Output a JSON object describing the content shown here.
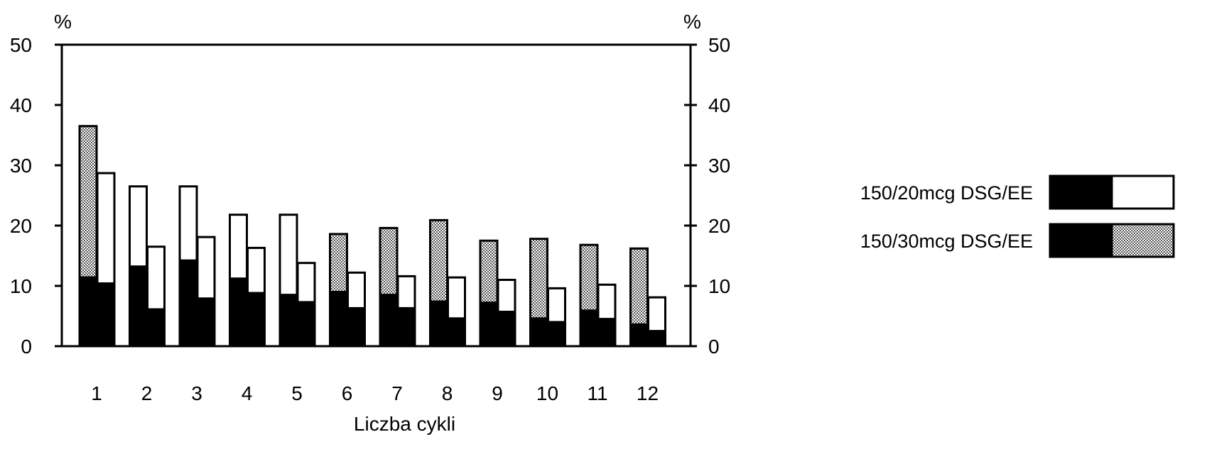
{
  "chart_data": {
    "type": "bar",
    "xlabel": "Liczba cykli",
    "left_axis_unit": "%",
    "right_axis_unit": "%",
    "ylim": [
      0,
      50
    ],
    "yticks": [
      0,
      10,
      20,
      30,
      40,
      50
    ],
    "categories": [
      "1",
      "2",
      "3",
      "4",
      "5",
      "6",
      "7",
      "8",
      "9",
      "10",
      "11",
      "12"
    ],
    "series": [
      {
        "name": "150/30mcg DSG/EE",
        "position": "first",
        "total": [
          36.5,
          26.5,
          26.5,
          21.8,
          21.8,
          18.6,
          19.6,
          20.9,
          17.5,
          17.8,
          16.8,
          16.2
        ],
        "dark_part": [
          11.4,
          13.2,
          14.2,
          11.2,
          8.5,
          9.0,
          8.5,
          7.4,
          7.2,
          4.6,
          5.9,
          3.6
        ],
        "upper_fill": [
          "dotted",
          "white",
          "white",
          "white",
          "white",
          "dotted",
          "dotted",
          "dotted",
          "dotted",
          "dotted",
          "dotted",
          "dotted"
        ]
      },
      {
        "name": "150/20mcg DSG/EE",
        "position": "second",
        "total": [
          28.7,
          16.5,
          18.1,
          16.3,
          13.8,
          12.2,
          11.6,
          11.4,
          11.0,
          9.6,
          10.2,
          8.1
        ],
        "dark_part": [
          10.4,
          6.1,
          7.9,
          8.8,
          7.3,
          6.3,
          6.3,
          4.6,
          5.7,
          4.0,
          4.5,
          2.5
        ],
        "upper_fill": [
          "white",
          "white",
          "white",
          "white",
          "white",
          "white",
          "white",
          "white",
          "white",
          "white",
          "white",
          "white"
        ]
      }
    ],
    "legend": {
      "placement": "right",
      "entries": [
        {
          "label": "150/20mcg DSG/EE",
          "left_fill": "black",
          "right_fill": "white"
        },
        {
          "label": "150/30mcg DSG/EE",
          "left_fill": "black",
          "right_fill": "dotted"
        }
      ]
    },
    "colors": {
      "dark": "#000000",
      "light": "#ffffff",
      "dotted": "#a0a0a0"
    }
  }
}
